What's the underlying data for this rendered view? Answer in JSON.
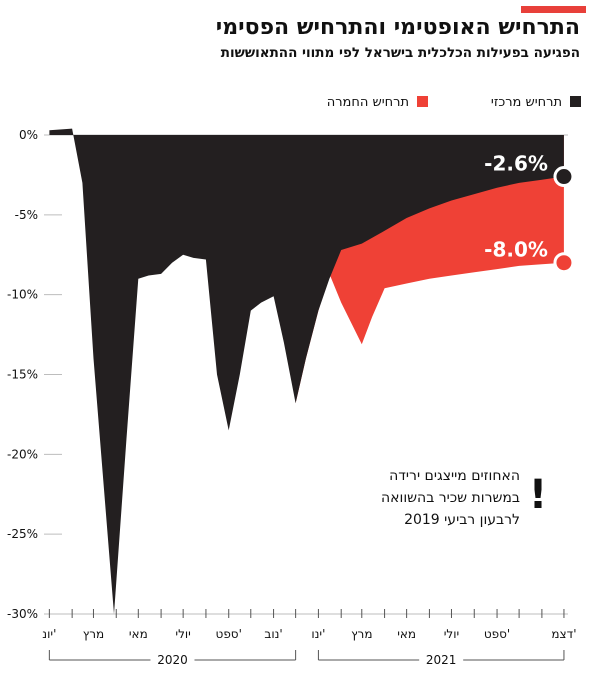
{
  "header": {
    "title": "התרחיש האופטימי והתרחיש הפסימי",
    "subtitle": "הפגיעה בפעילות הכלכלית בישראל לפי מתווי ההתאוששות",
    "accent_color": "#e8403a"
  },
  "colors": {
    "central": "#231f20",
    "red": "#ef4136",
    "grid": "#bdbdbd"
  },
  "chart_data": {
    "type": "area",
    "title": "התרחיש האופטימי והתרחיש הפסימי",
    "subtitle": "הפגיעה בפעילות הכלכלית בישראל לפי מתווי ההתאוששות",
    "y_axis": {
      "ticks": [
        0,
        -5,
        -10,
        -15,
        -20,
        -25,
        -30
      ],
      "tick_labels": [
        "0%",
        "-5%",
        "-10%",
        "-15%",
        "-20%",
        "-25%",
        "-30%"
      ],
      "range": [
        -30,
        0
      ]
    },
    "x_axis": {
      "month_labels": [
        "יונ'",
        "מרץ",
        "מאי",
        "יולי",
        "ספט'",
        "נוב'",
        "ינו'",
        "מרץ",
        "מאי",
        "יולי",
        "ספט'",
        "דצמ'"
      ],
      "year_labels": [
        "2020",
        "2021"
      ]
    },
    "legend": [
      {
        "label": "תרחיש מרכזי",
        "color": "#231f20"
      },
      {
        "label": "תרחיש החמרה",
        "color": "#ef4136"
      }
    ],
    "legend_position": "top",
    "grid": false,
    "series": [
      {
        "name": "תרחיש מרכזי",
        "x": [
          "2020-01-01",
          "2020-02-01",
          "2020-02-15",
          "2020-03-01",
          "2020-03-29",
          "2020-04-15",
          "2020-05-01",
          "2020-05-15",
          "2020-06-01",
          "2020-06-16",
          "2020-07-01",
          "2020-07-15",
          "2020-08-01",
          "2020-08-16",
          "2020-09-01",
          "2020-09-16",
          "2020-10-01",
          "2020-10-15",
          "2020-11-01",
          "2020-11-15",
          "2020-12-01",
          "2020-12-15",
          "2021-01-01",
          "2021-01-16",
          "2021-02-01",
          "2021-03-01",
          "2021-04-01",
          "2021-05-01",
          "2021-06-01",
          "2021-07-01",
          "2021-08-01",
          "2021-09-01",
          "2021-10-01",
          "2021-11-01",
          "2021-12-01"
        ],
        "values": [
          0.3,
          0.4,
          -3.0,
          -14.0,
          -30.0,
          -19.0,
          -9.0,
          -8.8,
          -8.7,
          -8.0,
          -7.5,
          -7.7,
          -7.8,
          -15.0,
          -18.5,
          -15.0,
          -11.0,
          -10.5,
          -10.1,
          -13.0,
          -16.8,
          -14.0,
          -11.0,
          -9.0,
          -7.2,
          -6.8,
          -6.0,
          -5.2,
          -4.6,
          -4.1,
          -3.7,
          -3.3,
          -3.0,
          -2.8,
          -2.6
        ]
      },
      {
        "name": "תרחיש החמרה",
        "x": [
          "2020-12-01",
          "2020-12-15",
          "2021-01-01",
          "2021-01-16",
          "2021-02-01",
          "2021-03-01",
          "2021-03-15",
          "2021-04-01",
          "2021-05-01",
          "2021-06-01",
          "2021-07-01",
          "2021-08-01",
          "2021-09-01",
          "2021-10-01",
          "2021-11-01",
          "2021-12-01"
        ],
        "values": [
          -16.8,
          -14.0,
          -11.0,
          -8.7,
          -10.5,
          -13.1,
          -11.4,
          -9.6,
          -9.3,
          -9.0,
          -8.8,
          -8.6,
          -8.4,
          -8.2,
          -8.1,
          -8.0
        ]
      }
    ],
    "end_labels": [
      "-2.6%",
      "-8.0%"
    ],
    "annotation": {
      "lines": [
        "האחוזים מייצגים ירידה",
        "במשרות שכיר בהשוואה",
        "לרבעון רביעי 2019"
      ],
      "mark": "!"
    }
  }
}
